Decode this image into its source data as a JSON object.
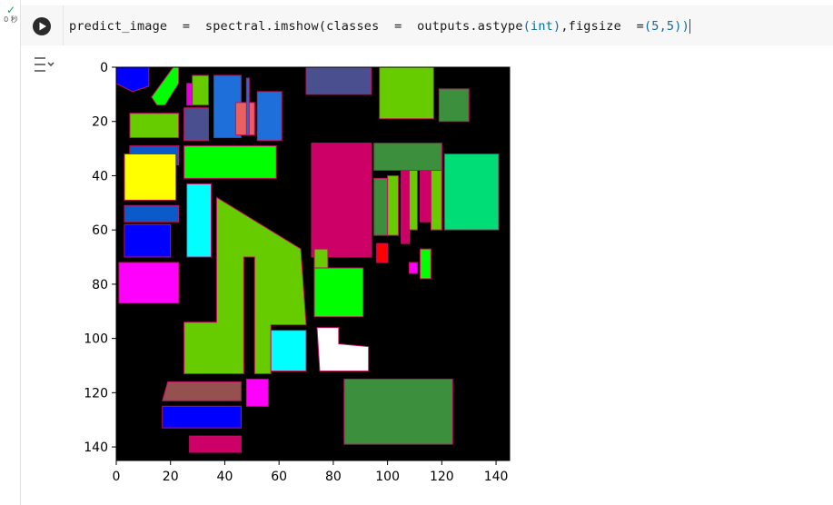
{
  "cell": {
    "status_check": "✓",
    "status_time": "0 秒",
    "code": {
      "var": "predict_image",
      "eq1": "=",
      "call": "spectral.imshow(",
      "arg1": "classes",
      "eq2": "=",
      "arg1_val": "outputs.astype",
      "type_open": "(",
      "type": "int",
      "type_close": ")",
      "comma": ",figsize",
      "eq3": "=",
      "tuple": "(5,5)",
      "close": ")"
    }
  },
  "chart_data": {
    "type": "heatmap",
    "title": "",
    "xlabel": "",
    "ylabel": "",
    "xlim": [
      0,
      145
    ],
    "ylim": [
      145,
      0
    ],
    "x_ticks": [
      "0",
      "20",
      "40",
      "60",
      "80",
      "100",
      "120",
      "140"
    ],
    "y_ticks": [
      "0",
      "20",
      "40",
      "60",
      "80",
      "100",
      "120",
      "140"
    ],
    "background": "#000000",
    "regions": [
      {
        "name": "region-blue-topleft",
        "color": "#0000ff",
        "points": [
          [
            0,
            0
          ],
          [
            12,
            0
          ],
          [
            12,
            7
          ],
          [
            6,
            9
          ],
          [
            0,
            6
          ]
        ]
      },
      {
        "name": "region-green-top-small",
        "color": "#00ff00",
        "points": [
          [
            21,
            0
          ],
          [
            23,
            0
          ],
          [
            23,
            6
          ],
          [
            18,
            14
          ],
          [
            15,
            14
          ],
          [
            13,
            11
          ]
        ]
      },
      {
        "name": "region-magenta-narrow",
        "color": "#e000e0",
        "points": [
          [
            26,
            6
          ],
          [
            28,
            6
          ],
          [
            28,
            14
          ],
          [
            26,
            14
          ]
        ]
      },
      {
        "name": "region-lime-top",
        "color": "#66cc00",
        "points": [
          [
            28,
            3
          ],
          [
            34,
            3
          ],
          [
            34,
            14
          ],
          [
            28,
            14
          ]
        ]
      },
      {
        "name": "region-slate-1",
        "color": "#4a4f8f",
        "points": [
          [
            25,
            15
          ],
          [
            34,
            15
          ],
          [
            34,
            27
          ],
          [
            25,
            27
          ]
        ]
      },
      {
        "name": "region-blue-mid-top",
        "color": "#1e6fd9",
        "points": [
          [
            36,
            3
          ],
          [
            46,
            3
          ],
          [
            46,
            26
          ],
          [
            36,
            26
          ]
        ]
      },
      {
        "name": "region-salmon",
        "color": "#e86060",
        "points": [
          [
            44,
            13
          ],
          [
            51,
            13
          ],
          [
            51,
            25
          ],
          [
            44,
            25
          ]
        ]
      },
      {
        "name": "region-blue-strip",
        "color": "#1e6fd9",
        "points": [
          [
            48,
            4
          ],
          [
            49,
            4
          ],
          [
            49,
            25
          ],
          [
            48,
            25
          ]
        ]
      },
      {
        "name": "region-blue-right-top",
        "color": "#1e6fd9",
        "points": [
          [
            52,
            9
          ],
          [
            61,
            9
          ],
          [
            61,
            27
          ],
          [
            52,
            27
          ]
        ]
      },
      {
        "name": "region-slate-top",
        "color": "#4a4f8f",
        "points": [
          [
            70,
            0
          ],
          [
            94,
            0
          ],
          [
            94,
            10
          ],
          [
            70,
            10
          ]
        ]
      },
      {
        "name": "region-lime-topright",
        "color": "#66cc00",
        "points": [
          [
            97,
            0
          ],
          [
            117,
            0
          ],
          [
            117,
            19
          ],
          [
            97,
            19
          ]
        ]
      },
      {
        "name": "region-darkgreen-small",
        "color": "#3c8f3c",
        "points": [
          [
            119,
            8
          ],
          [
            130,
            8
          ],
          [
            130,
            20
          ],
          [
            119,
            20
          ]
        ]
      },
      {
        "name": "region-lime-left20",
        "color": "#66cc00",
        "points": [
          [
            5,
            17
          ],
          [
            23,
            17
          ],
          [
            23,
            26
          ],
          [
            5,
            26
          ]
        ]
      },
      {
        "name": "region-blue-left35",
        "color": "#0a5ac9",
        "points": [
          [
            5,
            29
          ],
          [
            23,
            29
          ],
          [
            23,
            36
          ],
          [
            5,
            36
          ]
        ]
      },
      {
        "name": "region-yellow",
        "color": "#ffff00",
        "points": [
          [
            3,
            32
          ],
          [
            22,
            32
          ],
          [
            22,
            49
          ],
          [
            3,
            49
          ]
        ]
      },
      {
        "name": "region-green-large",
        "color": "#00ff00",
        "points": [
          [
            25,
            29
          ],
          [
            59,
            29
          ],
          [
            59,
            41
          ],
          [
            25,
            41
          ]
        ]
      },
      {
        "name": "region-crimson-large",
        "color": "#cc0066",
        "points": [
          [
            72,
            28
          ],
          [
            94,
            28
          ],
          [
            94,
            70
          ],
          [
            72,
            70
          ]
        ]
      },
      {
        "name": "region-darkgreen-top",
        "color": "#3c8f3c",
        "points": [
          [
            95,
            28
          ],
          [
            120,
            28
          ],
          [
            120,
            38
          ],
          [
            95,
            38
          ]
        ]
      },
      {
        "name": "region-spring",
        "color": "#00dd77",
        "points": [
          [
            121,
            32
          ],
          [
            141,
            32
          ],
          [
            141,
            60
          ],
          [
            121,
            60
          ]
        ]
      },
      {
        "name": "region-blue-left52",
        "color": "#0a5ac9",
        "points": [
          [
            3,
            51
          ],
          [
            23,
            51
          ],
          [
            23,
            57
          ],
          [
            3,
            57
          ]
        ]
      },
      {
        "name": "region-blue-left64",
        "color": "#0000ff",
        "points": [
          [
            3,
            58
          ],
          [
            20,
            58
          ],
          [
            20,
            70
          ],
          [
            3,
            70
          ]
        ]
      },
      {
        "name": "region-cyan-left",
        "color": "#00ffff",
        "points": [
          [
            26,
            43
          ],
          [
            35,
            43
          ],
          [
            35,
            70
          ],
          [
            26,
            70
          ]
        ]
      },
      {
        "name": "region-lime-big",
        "color": "#66cc00",
        "points": [
          [
            37,
            48
          ],
          [
            68,
            67
          ],
          [
            70,
            95
          ],
          [
            57,
            95
          ],
          [
            57,
            113
          ],
          [
            51,
            113
          ],
          [
            51,
            70
          ],
          [
            47,
            70
          ],
          [
            47,
            113
          ],
          [
            25,
            113
          ],
          [
            25,
            94
          ],
          [
            37,
            94
          ]
        ]
      },
      {
        "name": "region-col-darkgreen-1",
        "color": "#3c8f3c",
        "points": [
          [
            95,
            41
          ],
          [
            100,
            41
          ],
          [
            100,
            62
          ],
          [
            95,
            62
          ]
        ]
      },
      {
        "name": "region-col-lime-1",
        "color": "#66cc00",
        "points": [
          [
            100,
            40
          ],
          [
            104,
            40
          ],
          [
            104,
            62
          ],
          [
            100,
            62
          ]
        ]
      },
      {
        "name": "region-col-crimson-1",
        "color": "#cc0066",
        "points": [
          [
            105,
            38
          ],
          [
            108,
            38
          ],
          [
            108,
            65
          ],
          [
            105,
            65
          ]
        ]
      },
      {
        "name": "region-col-lime-2",
        "color": "#66cc00",
        "points": [
          [
            108,
            38
          ],
          [
            111,
            38
          ],
          [
            111,
            60
          ],
          [
            108,
            60
          ]
        ]
      },
      {
        "name": "region-col-crimson-2",
        "color": "#cc0066",
        "points": [
          [
            112,
            38
          ],
          [
            116,
            38
          ],
          [
            116,
            57
          ],
          [
            112,
            57
          ]
        ]
      },
      {
        "name": "region-col-lime-3",
        "color": "#66cc00",
        "points": [
          [
            116,
            38
          ],
          [
            120,
            38
          ],
          [
            120,
            60
          ],
          [
            116,
            60
          ]
        ]
      },
      {
        "name": "region-magenta-big",
        "color": "#ff00ff",
        "points": [
          [
            1,
            72
          ],
          [
            23,
            72
          ],
          [
            23,
            87
          ],
          [
            1,
            87
          ]
        ]
      },
      {
        "name": "region-lime-small70",
        "color": "#66cc00",
        "points": [
          [
            73,
            67
          ],
          [
            78,
            67
          ],
          [
            78,
            74
          ],
          [
            73,
            74
          ]
        ]
      },
      {
        "name": "region-green-mid",
        "color": "#00ff00",
        "points": [
          [
            73,
            74
          ],
          [
            91,
            74
          ],
          [
            91,
            92
          ],
          [
            73,
            92
          ]
        ]
      },
      {
        "name": "region-red-small",
        "color": "#ff0000",
        "points": [
          [
            96,
            65
          ],
          [
            100,
            65
          ],
          [
            100,
            72
          ],
          [
            96,
            72
          ]
        ]
      },
      {
        "name": "region-green-narrow",
        "color": "#00ff00",
        "points": [
          [
            112,
            67
          ],
          [
            116,
            67
          ],
          [
            116,
            78
          ],
          [
            112,
            78
          ]
        ]
      },
      {
        "name": "region-magenta-small",
        "color": "#ff00ff",
        "points": [
          [
            108,
            72
          ],
          [
            111,
            72
          ],
          [
            111,
            76
          ],
          [
            108,
            76
          ]
        ]
      },
      {
        "name": "region-cyan-mid",
        "color": "#00ffff",
        "points": [
          [
            57,
            97
          ],
          [
            70,
            97
          ],
          [
            70,
            112
          ],
          [
            57,
            112
          ]
        ]
      },
      {
        "name": "region-white",
        "color": "#ffffff",
        "points": [
          [
            74,
            96
          ],
          [
            82,
            96
          ],
          [
            82,
            102
          ],
          [
            93,
            103
          ],
          [
            93,
            112
          ],
          [
            75,
            112
          ]
        ]
      },
      {
        "name": "region-brown",
        "color": "#955050",
        "points": [
          [
            19,
            116
          ],
          [
            46,
            116
          ],
          [
            46,
            123
          ],
          [
            17,
            123
          ]
        ]
      },
      {
        "name": "region-magenta-mid",
        "color": "#ff00ff",
        "points": [
          [
            48,
            115
          ],
          [
            56,
            115
          ],
          [
            56,
            125
          ],
          [
            48,
            125
          ]
        ]
      },
      {
        "name": "region-blue-bottom",
        "color": "#0000ff",
        "points": [
          [
            17,
            125
          ],
          [
            46,
            125
          ],
          [
            46,
            133
          ],
          [
            17,
            133
          ]
        ]
      },
      {
        "name": "region-crimson-bottom",
        "color": "#cc0066",
        "points": [
          [
            27,
            136
          ],
          [
            46,
            136
          ],
          [
            46,
            142
          ],
          [
            27,
            142
          ]
        ]
      },
      {
        "name": "region-darkgreen-big",
        "color": "#3c8f3c",
        "points": [
          [
            84,
            115
          ],
          [
            124,
            115
          ],
          [
            124,
            139
          ],
          [
            84,
            139
          ]
        ]
      }
    ]
  }
}
